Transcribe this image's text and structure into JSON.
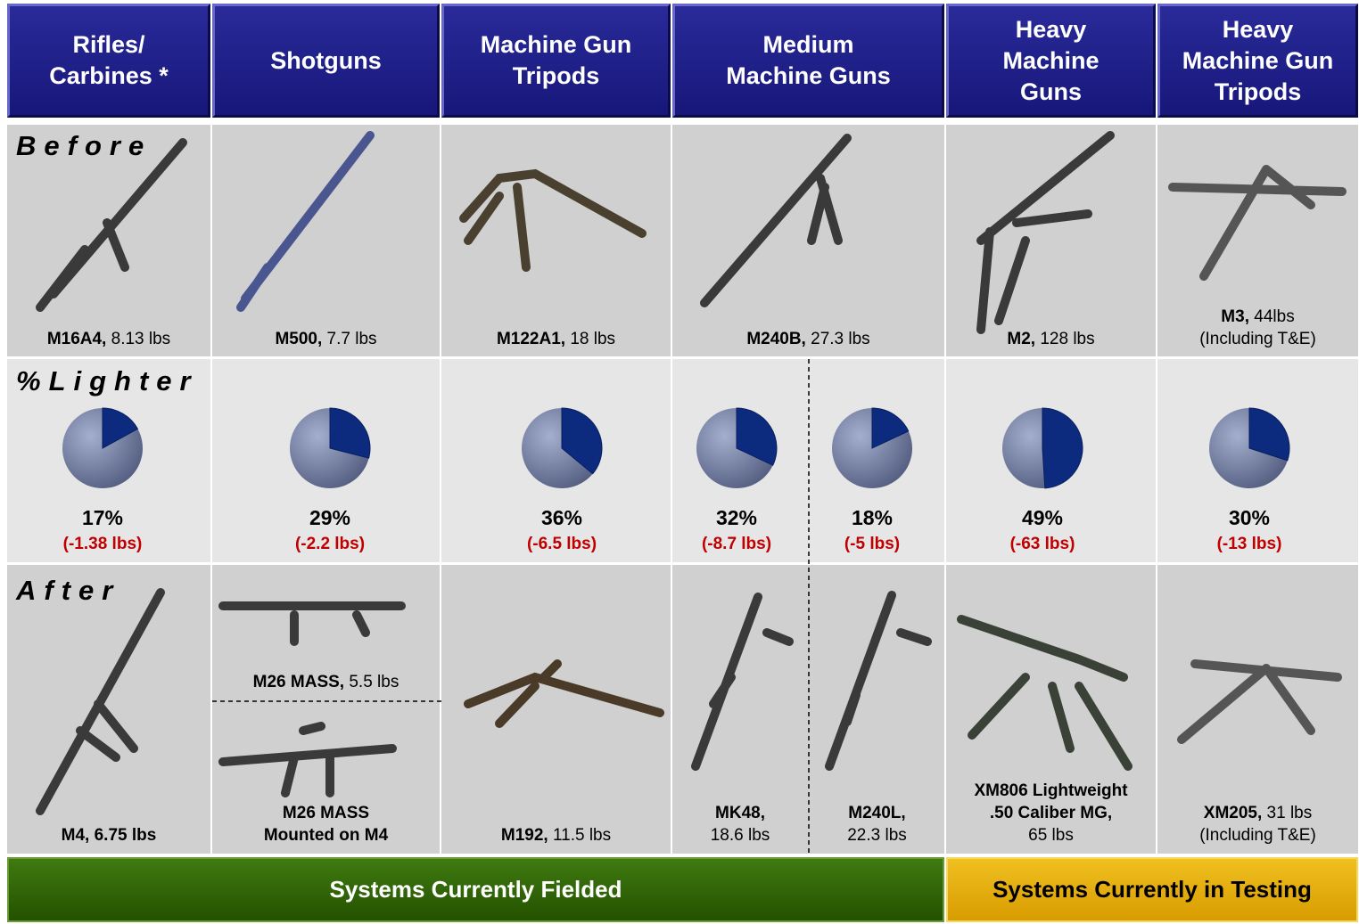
{
  "headers": [
    "Rifles/\nCarbines *",
    "Shotguns",
    "Machine Gun\nTripods",
    "Medium\nMachine Guns",
    "Heavy\nMachine\nGuns",
    "Heavy\nMachine Gun\nTripods"
  ],
  "row_labels": {
    "before": "Before",
    "lighter": "%Lighter",
    "after": "After"
  },
  "before": [
    {
      "model": "M16A4,",
      "spec": "8.13 lbs"
    },
    {
      "model": "M500,",
      "spec": "7.7 lbs"
    },
    {
      "model": "M122A1,",
      "spec": "18 lbs"
    },
    {
      "model": "M240B,",
      "spec": "27.3 lbs"
    },
    {
      "model": "M2,",
      "spec": "128 lbs"
    },
    {
      "model": "M3,",
      "spec": "44lbs\n(Including T&E)"
    }
  ],
  "lighter": [
    {
      "value": 17,
      "label": "17%",
      "delta": "(-1.38 lbs)"
    },
    {
      "value": 29,
      "label": "29%",
      "delta": "(-2.2 lbs)"
    },
    {
      "value": 36,
      "label": "36%",
      "delta": "(-6.5 lbs)"
    },
    {
      "value": 32,
      "label": "32%",
      "delta": "(-8.7 lbs)"
    },
    {
      "value": 18,
      "label": "18%",
      "delta": "(-5 lbs)"
    },
    {
      "value": 49,
      "label": "49%",
      "delta": "(-63 lbs)"
    },
    {
      "value": 30,
      "label": "30%",
      "delta": "(-13 lbs)"
    }
  ],
  "after": [
    {
      "model": "M4, 6.75 lbs"
    },
    {
      "model": "M26 MASS,",
      "spec": "5.5 lbs"
    },
    {
      "model": "M26 MASS\nMounted on M4"
    },
    {
      "model": "M192,",
      "spec": "11.5 lbs"
    },
    {
      "model": "MK48,",
      "spec": "18.6 lbs"
    },
    {
      "model": "M240L,",
      "spec": "22.3 lbs"
    },
    {
      "model": "XM806 Lightweight\n.50 Caliber MG,",
      "spec": "65 lbs"
    },
    {
      "model": "XM205,",
      "spec": "31 lbs\n(Including T&E)"
    }
  ],
  "footer": {
    "fielded": "Systems Currently Fielded",
    "testing": "Systems Currently in Testing"
  }
}
